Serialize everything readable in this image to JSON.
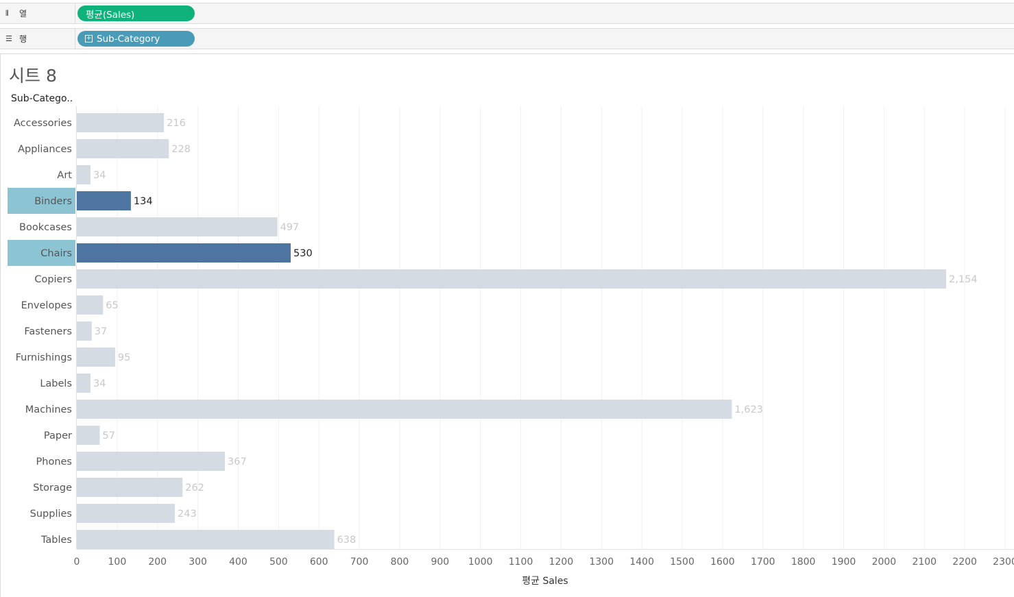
{
  "shelves": {
    "columns": {
      "label": "열",
      "icon": "columns-icon",
      "pill": "평균(Sales)",
      "pill_color": "#10b27c"
    },
    "rows": {
      "label": "행",
      "icon": "rows-icon",
      "pill": "Sub-Category",
      "pill_color": "#4a9bb8"
    }
  },
  "sheet": {
    "title": "시트 8",
    "row_header": "Sub-Catego.."
  },
  "colors": {
    "bar_default": "#d4dbe3",
    "bar_selected": "#4e74a1",
    "label_selected_bg": "#8dc4d3",
    "value_default": "#c8c8c8",
    "value_selected": "#222222"
  },
  "chart_data": {
    "type": "bar",
    "orientation": "horizontal",
    "xlabel": "평균 Sales",
    "ylabel": "Sub-Catego..",
    "xlim": [
      0,
      2300
    ],
    "xticks": [
      0,
      100,
      200,
      300,
      400,
      500,
      600,
      700,
      800,
      900,
      1000,
      1100,
      1200,
      1300,
      1400,
      1500,
      1600,
      1700,
      1800,
      1900,
      2000,
      2100,
      2200,
      2300
    ],
    "grid": true,
    "categories": [
      "Accessories",
      "Appliances",
      "Art",
      "Binders",
      "Bookcases",
      "Chairs",
      "Copiers",
      "Envelopes",
      "Fasteners",
      "Furnishings",
      "Labels",
      "Machines",
      "Paper",
      "Phones",
      "Storage",
      "Supplies",
      "Tables"
    ],
    "values": [
      216,
      228,
      34,
      134,
      497,
      530,
      2154,
      65,
      37,
      95,
      34,
      1623,
      57,
      367,
      262,
      243,
      638
    ],
    "value_labels": [
      "216",
      "228",
      "34",
      "134",
      "497",
      "530",
      "2,154",
      "65",
      "37",
      "95",
      "34",
      "1,623",
      "57",
      "367",
      "262",
      "243",
      "638"
    ],
    "selected": [
      "Binders",
      "Chairs"
    ]
  }
}
